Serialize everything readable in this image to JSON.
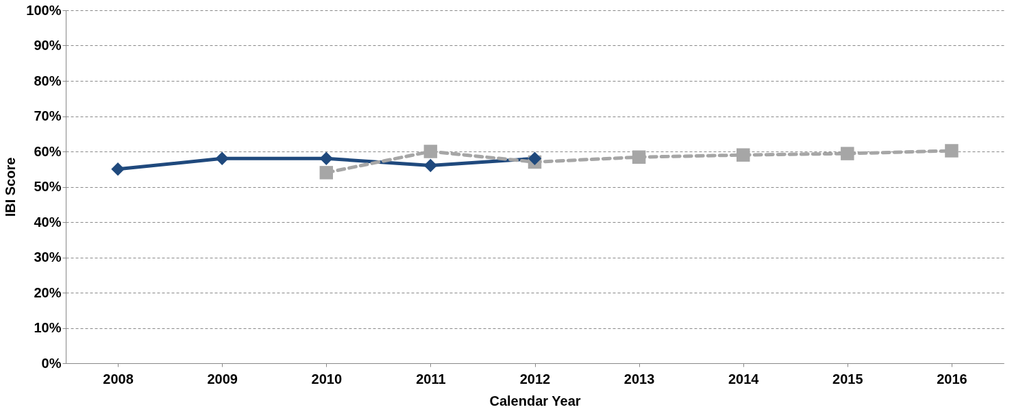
{
  "chart_data": {
    "type": "line",
    "xlabel": "Calendar Year",
    "ylabel": "IBI Score",
    "categories": [
      "2008",
      "2009",
      "2010",
      "2011",
      "2012",
      "2013",
      "2014",
      "2015",
      "2016"
    ],
    "series": [
      {
        "color": "#1f497d",
        "marker": "diamond",
        "line_style": "solid",
        "values": [
          55,
          58,
          58,
          56,
          58,
          null,
          null,
          null,
          null
        ]
      },
      {
        "color": "#a6a6a6",
        "marker": "square",
        "line_style": "dashed",
        "values": [
          null,
          null,
          54,
          60,
          57,
          58.4,
          59,
          59.4,
          60.2
        ]
      }
    ],
    "ylim": [
      0,
      100
    ],
    "yticks": [
      {
        "value": 0,
        "label": "0%"
      },
      {
        "value": 10,
        "label": "10%"
      },
      {
        "value": 20,
        "label": "20%"
      },
      {
        "value": 30,
        "label": "30%"
      },
      {
        "value": 40,
        "label": "40%"
      },
      {
        "value": 50,
        "label": "50%"
      },
      {
        "value": 60,
        "label": "60%"
      },
      {
        "value": 70,
        "label": "70%"
      },
      {
        "value": 80,
        "label": "80%"
      },
      {
        "value": 90,
        "label": "90%"
      },
      {
        "value": 100,
        "label": "100%"
      }
    ],
    "grid": "y"
  }
}
